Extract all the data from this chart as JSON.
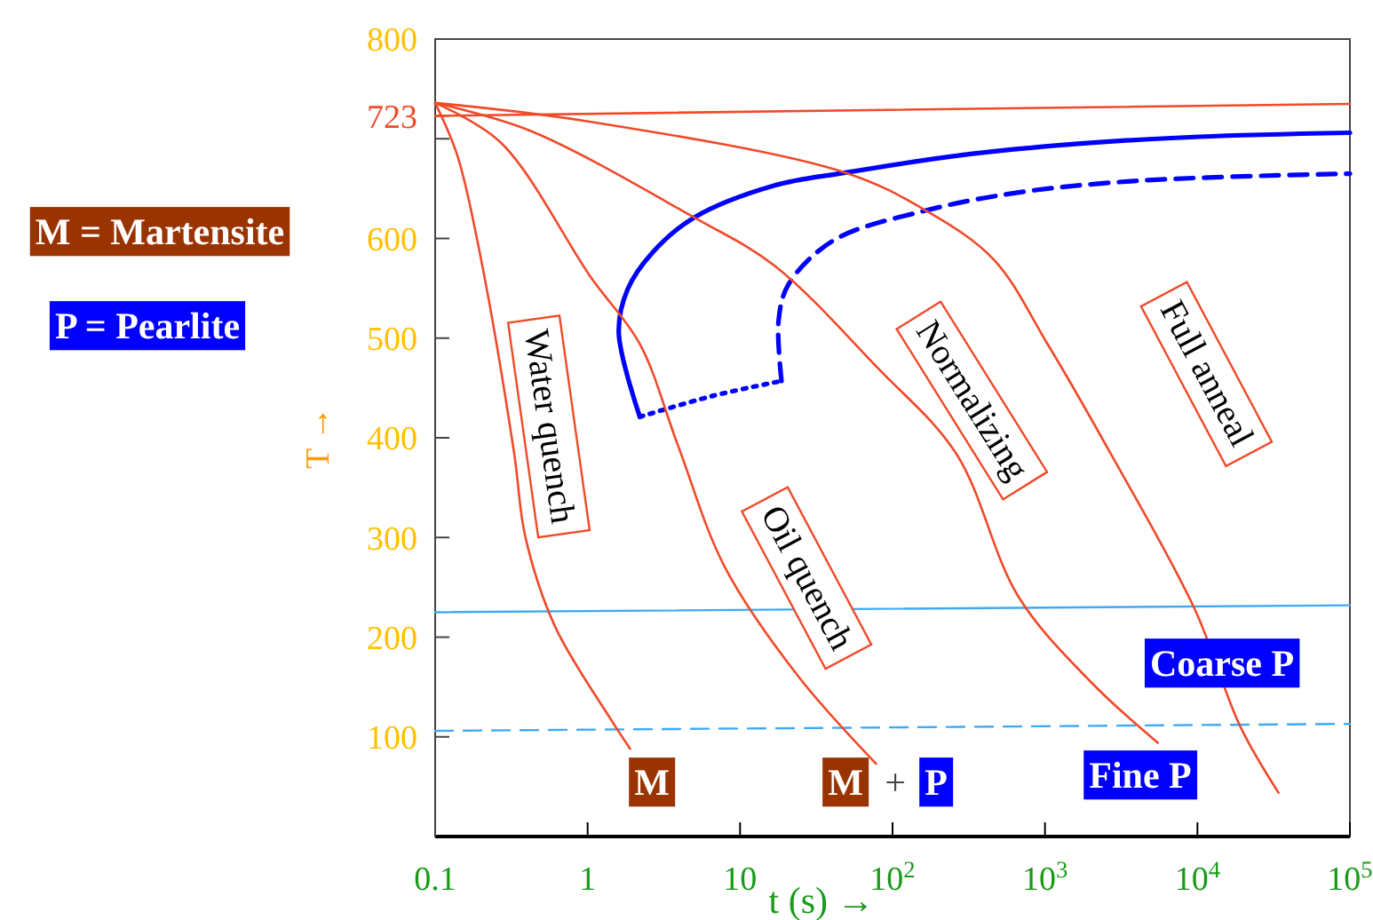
{
  "chart_data": {
    "type": "line",
    "xlabel": "t  (s)  →",
    "ylabel": "T →",
    "log": "x",
    "grid": false,
    "xlim": [
      0.1,
      100000
    ],
    "ylim": [
      0,
      800
    ],
    "xticks": [
      0.1,
      1,
      10,
      {
        "value": 100,
        "label": "10$^{2}$"
      },
      {
        "value": 1000,
        "label": "10$^{3}$"
      },
      {
        "value": 10000,
        "label": "10$^{4}$"
      },
      {
        "value": 100000,
        "label": "10$^{5}$"
      }
    ],
    "yticks": [
      100,
      200,
      300,
      400,
      500,
      600,
      {
        "value": 700,
        "label": null
      },
      723,
      800
    ],
    "series": [
      {
        "color": "#f04a2a",
        "x": [
          0.1,
          100000
        ],
        "values": [
          723,
          735
        ]
      },
      {
        "color": "#0000ff",
        "x": [
          2.2,
          1.6,
          1.83,
          2.67,
          5.0,
          16.7,
          49,
          264,
          1640,
          10300,
          100000
        ],
        "values": [
          421,
          506,
          549,
          586,
          621,
          653,
          666,
          683,
          695,
          702,
          706
        ]
      },
      {
        "color": "#0000ff",
        "line_style": "dotted",
        "x": [
          2.2,
          6.6,
          18.7
        ],
        "values": [
          421,
          442,
          457
        ]
      },
      {
        "color": "#0000ff",
        "line_style": "dashed",
        "x": [
          18.7,
          17.9,
          20.8,
          41,
          165,
          660,
          4200,
          100000
        ],
        "values": [
          457,
          518,
          554,
          598,
          628,
          646,
          658,
          665
        ]
      },
      {
        "color": "#3fa9f5",
        "x": [
          0.1,
          100000
        ],
        "values": [
          225,
          232
        ]
      },
      {
        "color": "#3fa9f5",
        "line_style": "dashed",
        "x": [
          0.1,
          100000
        ],
        "values": [
          106,
          113
        ]
      },
      {
        "color": "#f04a2a",
        "x": [
          0.1,
          0.14,
          0.2,
          0.33,
          0.39,
          0.61,
          1.4,
          1.9
        ],
        "values": [
          736,
          683,
          579,
          384,
          301,
          211,
          119,
          88
        ]
      },
      {
        "color": "#f04a2a",
        "x": [
          0.1,
          0.27,
          1.05,
          2.2,
          3.9,
          7.9,
          24,
          78
        ],
        "values": [
          736,
          696,
          561,
          494,
          393,
          271,
          161,
          73
        ]
      },
      {
        "color": "#f04a2a",
        "x": [
          0.1,
          0.42,
          5,
          16.7,
          80,
          262,
          667,
          2000,
          5500
        ],
        "values": [
          736,
          708,
          621,
          573,
          470,
          384,
          241,
          155,
          94
        ]
      },
      {
        "color": "#f04a2a",
        "x": [
          0.1,
          1.05,
          49,
          165,
          460,
          1040,
          2700,
          9600,
          19000,
          34000
        ],
        "values": [
          736,
          717,
          666,
          628,
          579,
          494,
          384,
          228,
          111,
          44
        ]
      }
    ],
    "annotations": [
      "Water quench",
      "Oil quench",
      "Normalizing",
      "Full anneal",
      "M",
      "M",
      "+",
      "P",
      "Fine P",
      "Coarse P",
      "M = Martensite",
      "P = Pearlite"
    ]
  }
}
